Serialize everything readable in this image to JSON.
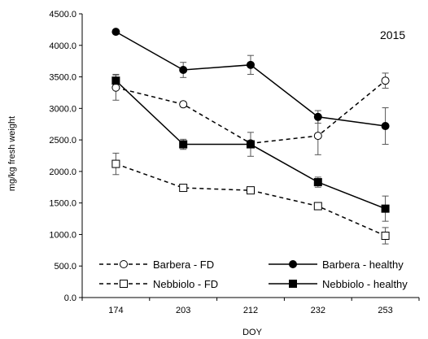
{
  "chart_data": {
    "type": "line",
    "annotation": "2015",
    "xlabel": "DOY",
    "ylabel": "mg/kg fresh weight",
    "categories": [
      "174",
      "203",
      "212",
      "232",
      "253"
    ],
    "ylim": [
      0,
      4500
    ],
    "yticks": [
      0,
      500,
      1000,
      1500,
      2000,
      2500,
      3000,
      3500,
      4000,
      4500
    ],
    "ytick_labels": [
      "0.0",
      "500.0",
      "1000.0",
      "1500.0",
      "2000.0",
      "2500.0",
      "3000.0",
      "3500.0",
      "4000.0",
      "4500.0"
    ],
    "grid": false,
    "legend_position": "bottom",
    "series": [
      {
        "name": "Barbera - FD",
        "marker": "circle-open",
        "line": "dashed",
        "values": [
          3330,
          3065,
          2445,
          2565,
          3440
        ],
        "errors": [
          200,
          40,
          30,
          300,
          120
        ]
      },
      {
        "name": "Barbera - healthy",
        "marker": "circle-filled",
        "line": "solid",
        "values": [
          4215,
          3610,
          3690,
          2865,
          2720
        ],
        "errors": [
          30,
          120,
          150,
          100,
          290
        ]
      },
      {
        "name": "Nebbiolo - FD",
        "marker": "square-open",
        "line": "dashed",
        "values": [
          2120,
          1740,
          1700,
          1450,
          980
        ],
        "errors": [
          170,
          40,
          40,
          40,
          130
        ]
      },
      {
        "name": "Nebbiolo - healthy",
        "marker": "square-filled",
        "line": "solid",
        "values": [
          3440,
          2430,
          2430,
          1830,
          1410
        ],
        "errors": [
          100,
          80,
          190,
          80,
          200
        ]
      }
    ]
  }
}
